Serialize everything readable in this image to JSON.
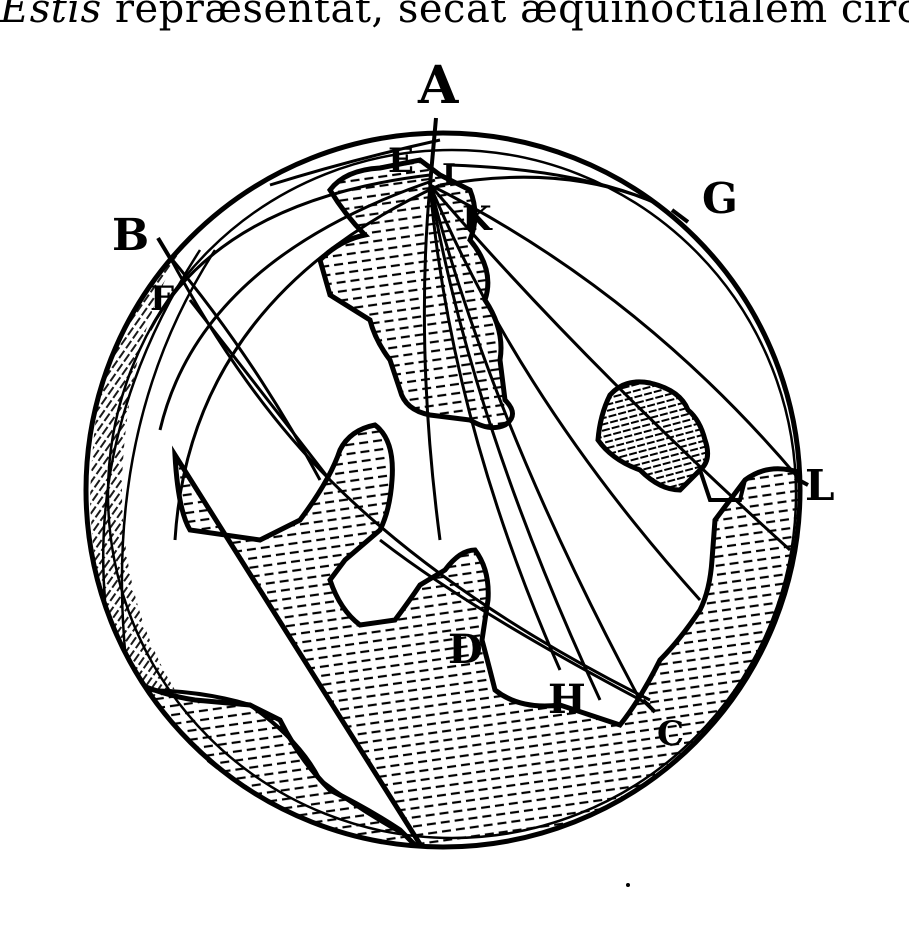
{
  "caption": {
    "italic_word": "Estis",
    "rest": " repræsentat, secat æquinoctialem circulum"
  },
  "labels": {
    "A": "A",
    "B": "B",
    "C": "C",
    "D": "D",
    "E": "E",
    "F": "F",
    "G": "G",
    "H": "H",
    "I": "I",
    "K": "K",
    "L": "L"
  },
  "colors": {
    "ink": "#000000",
    "paper": "#ffffff"
  }
}
